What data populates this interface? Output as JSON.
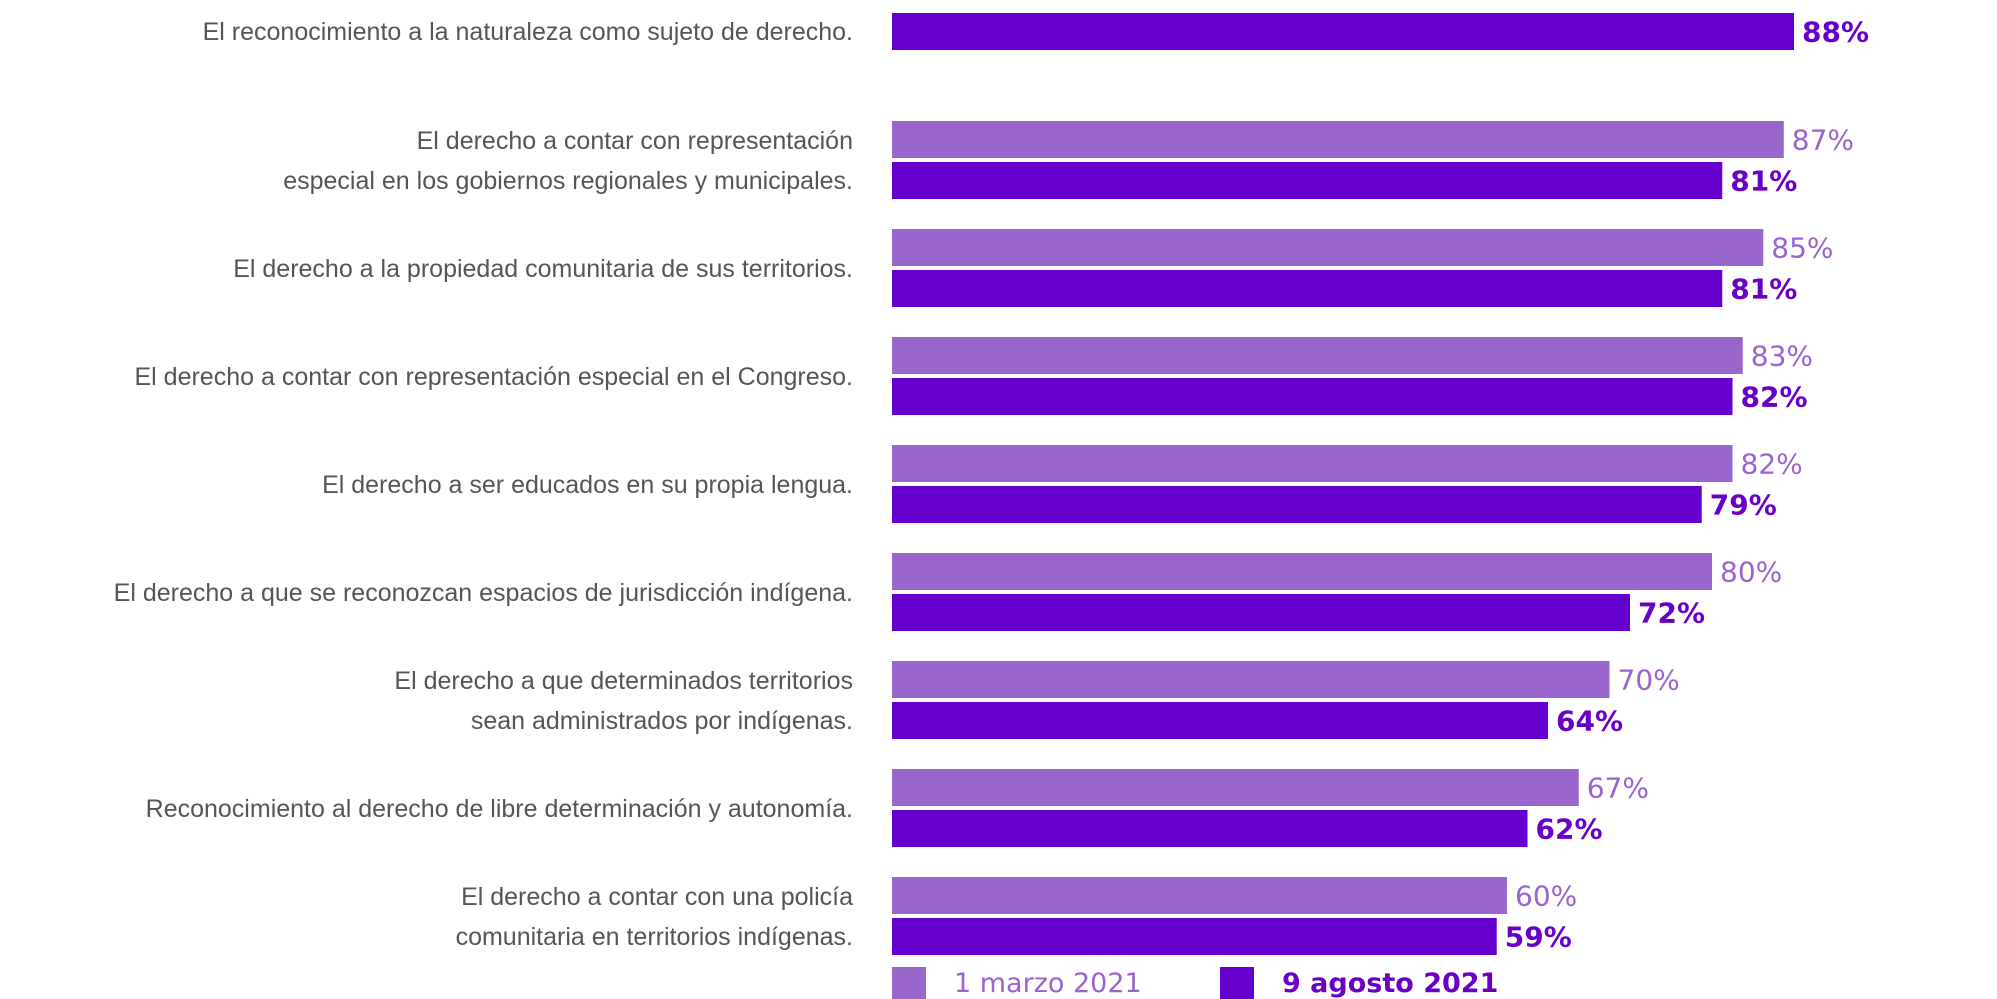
{
  "chart_data": {
    "type": "bar",
    "orientation": "horizontal",
    "categories": [
      [
        "El reconocimiento a la naturaleza como sujeto de derecho."
      ],
      [
        "El derecho a contar con representación",
        "especial en los gobiernos regionales y municipales."
      ],
      [
        "El derecho a la propiedad comunitaria de sus territorios."
      ],
      [
        "El derecho a contar con representación especial en el Congreso."
      ],
      [
        "El derecho a ser educados en su propia lengua."
      ],
      [
        "El derecho a que se reconozcan espacios de jurisdicción indígena."
      ],
      [
        "El derecho a que determinados territorios",
        "sean administrados por indígenas."
      ],
      [
        "Reconocimiento al derecho de libre determinación y autonomía."
      ],
      [
        "El derecho a contar con una policía",
        "comunitaria en territorios indígenas."
      ]
    ],
    "series": [
      {
        "name": "1 marzo 2021",
        "color": "#9966cc",
        "values": [
          null,
          87,
          85,
          83,
          82,
          80,
          70,
          67,
          60
        ],
        "labels": [
          "",
          "87%",
          "85%",
          "83%",
          "82%",
          "80%",
          "70%",
          "67%",
          "60%"
        ]
      },
      {
        "name": "9 agosto 2021",
        "color": "#6600cc",
        "values": [
          88,
          81,
          81,
          82,
          79,
          72,
          64,
          62,
          59
        ],
        "labels": [
          "88%",
          "81%",
          "81%",
          "82%",
          "79%",
          "72%",
          "64%",
          "62%",
          "59%"
        ]
      }
    ],
    "xlim": [
      0,
      100
    ],
    "legend": "bottom",
    "grid": false
  }
}
